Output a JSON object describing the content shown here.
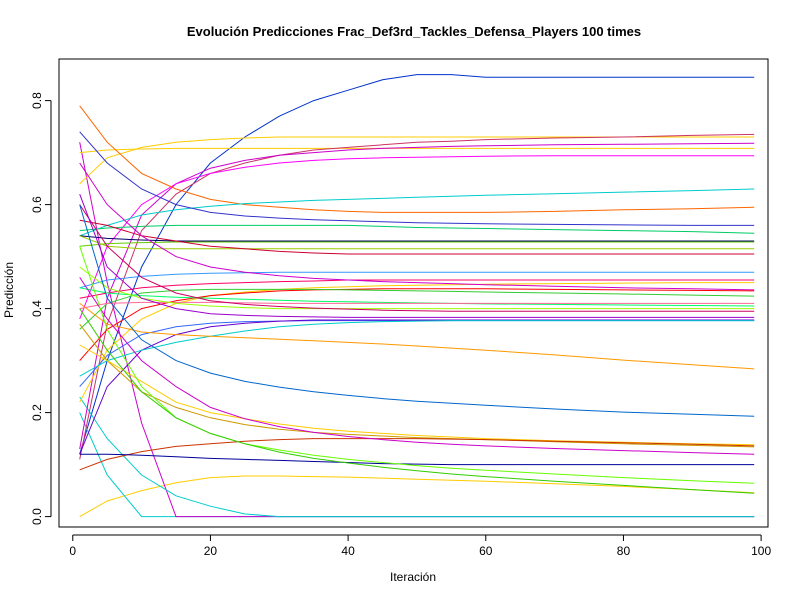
{
  "chart_data": {
    "type": "line",
    "title": "Evolución Predicciones Frac_Def3rd_Tackles_Defensa_Players 100 times",
    "xlabel": "Iteración",
    "ylabel": "Predicción",
    "xlim": [
      -2,
      101
    ],
    "ylim": [
      -0.02,
      0.88
    ],
    "x_ticks": [
      0,
      20,
      40,
      60,
      80,
      100
    ],
    "x_tick_labels": [
      "0",
      "20",
      "40",
      "60",
      "80",
      "100"
    ],
    "y_ticks": [
      0.0,
      0.2,
      0.4,
      0.6,
      0.8
    ],
    "y_tick_labels": [
      "0.0",
      "0.2",
      "0.4",
      "0.6",
      "0.8"
    ],
    "grid": false,
    "legend": "none",
    "x": [
      1,
      5,
      10,
      15,
      20,
      25,
      30,
      35,
      40,
      45,
      50,
      55,
      60,
      70,
      80,
      90,
      99
    ],
    "series": [
      {
        "color": "#0033cc",
        "values": [
          0.12,
          0.3,
          0.48,
          0.6,
          0.68,
          0.73,
          0.77,
          0.8,
          0.82,
          0.84,
          0.85,
          0.85,
          0.845,
          0.845,
          0.845,
          0.845,
          0.845
        ]
      },
      {
        "color": "#ffcc00",
        "values": [
          0.0,
          0.03,
          0.05,
          0.065,
          0.075,
          0.078,
          0.078,
          0.077,
          0.076,
          0.074,
          0.072,
          0.07,
          0.068,
          0.063,
          0.058,
          0.052,
          0.046
        ]
      },
      {
        "color": "#00cccc",
        "values": [
          0.2,
          0.08,
          0.0,
          0.0,
          0.0,
          0.0,
          0.0,
          0.0,
          0.0,
          0.0,
          0.0,
          0.0,
          0.0,
          0.0,
          0.0,
          0.0,
          0.0
        ]
      },
      {
        "color": "#cc00cc",
        "values": [
          0.72,
          0.45,
          0.18,
          0.0,
          0.0,
          0.0,
          0.0,
          0.0,
          0.0,
          0.0,
          0.0,
          0.0,
          0.0,
          0.0,
          0.0,
          0.0,
          0.0
        ]
      },
      {
        "color": "#00cccc",
        "values": [
          0.23,
          0.15,
          0.08,
          0.04,
          0.02,
          0.005,
          0.0,
          0.0,
          0.0,
          0.0,
          0.0,
          0.0,
          0.0,
          0.0,
          0.0,
          0.0,
          0.0
        ]
      },
      {
        "color": "#ffcc00",
        "values": [
          0.64,
          0.69,
          0.71,
          0.72,
          0.725,
          0.728,
          0.73,
          0.73,
          0.73,
          0.73,
          0.73,
          0.73,
          0.73,
          0.73,
          0.73,
          0.73,
          0.73
        ]
      },
      {
        "color": "#ffcc00",
        "values": [
          0.7,
          0.705,
          0.707,
          0.708,
          0.708,
          0.708,
          0.708,
          0.708,
          0.708,
          0.708,
          0.708,
          0.708,
          0.708,
          0.708,
          0.708,
          0.708,
          0.708
        ]
      },
      {
        "color": "#cc3366",
        "values": [
          0.11,
          0.37,
          0.55,
          0.62,
          0.66,
          0.68,
          0.695,
          0.705,
          0.71,
          0.715,
          0.72,
          0.722,
          0.725,
          0.728,
          0.73,
          0.733,
          0.735
        ]
      },
      {
        "color": "#cc00cc",
        "values": [
          0.13,
          0.42,
          0.58,
          0.64,
          0.67,
          0.685,
          0.695,
          0.7,
          0.705,
          0.708,
          0.71,
          0.712,
          0.713,
          0.715,
          0.716,
          0.717,
          0.718
        ]
      },
      {
        "color": "#ff00ff",
        "values": [
          0.38,
          0.52,
          0.6,
          0.64,
          0.66,
          0.672,
          0.68,
          0.685,
          0.688,
          0.69,
          0.691,
          0.692,
          0.693,
          0.694,
          0.694,
          0.694,
          0.694
        ]
      },
      {
        "color": "#ff6600",
        "values": [
          0.79,
          0.72,
          0.66,
          0.63,
          0.61,
          0.6,
          0.595,
          0.59,
          0.587,
          0.585,
          0.585,
          0.585,
          0.585,
          0.587,
          0.59,
          0.592,
          0.595
        ]
      },
      {
        "color": "#00cccc",
        "values": [
          0.54,
          0.56,
          0.58,
          0.59,
          0.597,
          0.602,
          0.605,
          0.608,
          0.61,
          0.612,
          0.614,
          0.616,
          0.618,
          0.621,
          0.624,
          0.627,
          0.63
        ]
      },
      {
        "color": "#3333cc",
        "values": [
          0.74,
          0.68,
          0.63,
          0.6,
          0.585,
          0.578,
          0.574,
          0.571,
          0.569,
          0.567,
          0.565,
          0.564,
          0.563,
          0.562,
          0.561,
          0.56,
          0.56
        ]
      },
      {
        "color": "#00cc66",
        "values": [
          0.55,
          0.555,
          0.558,
          0.56,
          0.56,
          0.56,
          0.56,
          0.56,
          0.56,
          0.558,
          0.556,
          0.555,
          0.554,
          0.552,
          0.55,
          0.548,
          0.545
        ]
      },
      {
        "color": "#000066",
        "values": [
          0.54,
          0.535,
          0.532,
          0.53,
          0.53,
          0.53,
          0.53,
          0.53,
          0.53,
          0.53,
          0.53,
          0.53,
          0.53,
          0.53,
          0.53,
          0.53,
          0.53
        ]
      },
      {
        "color": "#66cc00",
        "values": [
          0.52,
          0.525,
          0.527,
          0.528,
          0.528,
          0.528,
          0.528,
          0.528,
          0.528,
          0.528,
          0.528,
          0.528,
          0.528,
          0.528,
          0.528,
          0.528,
          0.528
        ]
      },
      {
        "color": "#99cc00",
        "values": [
          0.54,
          0.52,
          0.515,
          0.515,
          0.515,
          0.515,
          0.515,
          0.515,
          0.515,
          0.515,
          0.515,
          0.515,
          0.515,
          0.515,
          0.515,
          0.515,
          0.515
        ]
      },
      {
        "color": "#cc0033",
        "values": [
          0.57,
          0.56,
          0.54,
          0.53,
          0.52,
          0.515,
          0.51,
          0.507,
          0.505,
          0.505,
          0.505,
          0.505,
          0.505,
          0.505,
          0.505,
          0.505,
          0.505
        ]
      },
      {
        "color": "#3399ff",
        "values": [
          0.44,
          0.455,
          0.462,
          0.466,
          0.468,
          0.469,
          0.47,
          0.47,
          0.47,
          0.47,
          0.47,
          0.47,
          0.47,
          0.47,
          0.47,
          0.47,
          0.47
        ]
      },
      {
        "color": "#ff0066",
        "values": [
          0.42,
          0.43,
          0.44,
          0.445,
          0.448,
          0.45,
          0.452,
          0.453,
          0.455,
          0.455,
          0.455,
          0.455,
          0.455,
          0.455,
          0.455,
          0.455,
          0.455
        ]
      },
      {
        "color": "#ffcc00",
        "values": [
          0.22,
          0.32,
          0.38,
          0.41,
          0.425,
          0.432,
          0.437,
          0.44,
          0.442,
          0.444,
          0.445,
          0.446,
          0.447,
          0.448,
          0.449,
          0.45,
          0.45
        ]
      },
      {
        "color": "#cc00cc",
        "values": [
          0.68,
          0.6,
          0.54,
          0.5,
          0.48,
          0.47,
          0.463,
          0.458,
          0.455,
          0.452,
          0.45,
          0.448,
          0.446,
          0.443,
          0.44,
          0.438,
          0.436
        ]
      },
      {
        "color": "#ff0000",
        "values": [
          0.3,
          0.36,
          0.4,
          0.415,
          0.425,
          0.43,
          0.434,
          0.436,
          0.437,
          0.438,
          0.438,
          0.438,
          0.438,
          0.437,
          0.436,
          0.435,
          0.434
        ]
      },
      {
        "color": "#33cc33",
        "values": [
          0.36,
          0.41,
          0.43,
          0.435,
          0.437,
          0.437,
          0.437,
          0.437,
          0.436,
          0.435,
          0.434,
          0.433,
          0.432,
          0.43,
          0.428,
          0.426,
          0.424
        ]
      },
      {
        "color": "#00ff66",
        "values": [
          0.44,
          0.43,
          0.425,
          0.422,
          0.42,
          0.418,
          0.416,
          0.414,
          0.413,
          0.412,
          0.411,
          0.41,
          0.409,
          0.408,
          0.407,
          0.406,
          0.405
        ]
      },
      {
        "color": "#ff6699",
        "values": [
          0.4,
          0.41,
          0.412,
          0.412,
          0.412,
          0.411,
          0.41,
          0.41,
          0.41,
          0.41,
          0.41,
          0.41,
          0.41,
          0.41,
          0.41,
          0.41,
          0.41
        ]
      },
      {
        "color": "#99ff00",
        "values": [
          0.48,
          0.44,
          0.42,
          0.41,
          0.405,
          0.402,
          0.4,
          0.4,
          0.4,
          0.4,
          0.4,
          0.4,
          0.4,
          0.4,
          0.4,
          0.4,
          0.4
        ]
      },
      {
        "color": "#cc0066",
        "values": [
          0.6,
          0.52,
          0.46,
          0.43,
          0.415,
          0.408,
          0.404,
          0.401,
          0.399,
          0.397,
          0.396,
          0.395,
          0.395,
          0.395,
          0.395,
          0.395,
          0.395
        ]
      },
      {
        "color": "#9900cc",
        "values": [
          0.62,
          0.48,
          0.42,
          0.4,
          0.39,
          0.387,
          0.385,
          0.384,
          0.383,
          0.383,
          0.383,
          0.383,
          0.383,
          0.383,
          0.383,
          0.383,
          0.383
        ]
      },
      {
        "color": "#3366ff",
        "values": [
          0.25,
          0.31,
          0.35,
          0.365,
          0.372,
          0.375,
          0.376,
          0.377,
          0.377,
          0.377,
          0.377,
          0.377,
          0.377,
          0.377,
          0.377,
          0.377,
          0.377
        ]
      },
      {
        "color": "#6600cc",
        "values": [
          0.12,
          0.25,
          0.32,
          0.35,
          0.365,
          0.372,
          0.376,
          0.378,
          0.378,
          0.378,
          0.378,
          0.378,
          0.378,
          0.378,
          0.378,
          0.378,
          0.378
        ]
      },
      {
        "color": "#00cccc",
        "values": [
          0.27,
          0.3,
          0.32,
          0.335,
          0.347,
          0.357,
          0.365,
          0.37,
          0.373,
          0.375,
          0.376,
          0.377,
          0.377,
          0.377,
          0.377,
          0.377,
          0.377
        ]
      },
      {
        "color": "#ff9900",
        "values": [
          0.41,
          0.37,
          0.355,
          0.35,
          0.347,
          0.344,
          0.341,
          0.338,
          0.335,
          0.332,
          0.328,
          0.324,
          0.32,
          0.311,
          0.301,
          0.292,
          0.284
        ]
      },
      {
        "color": "#0066cc",
        "values": [
          0.6,
          0.42,
          0.34,
          0.3,
          0.276,
          0.26,
          0.249,
          0.24,
          0.233,
          0.227,
          0.222,
          0.218,
          0.214,
          0.207,
          0.201,
          0.197,
          0.193
        ]
      },
      {
        "color": "#cc9900",
        "values": [
          0.37,
          0.3,
          0.24,
          0.21,
          0.19,
          0.177,
          0.168,
          0.162,
          0.158,
          0.155,
          0.152,
          0.15,
          0.148,
          0.144,
          0.14,
          0.137,
          0.134
        ]
      },
      {
        "color": "#ffcc00",
        "values": [
          0.33,
          0.3,
          0.26,
          0.22,
          0.2,
          0.188,
          0.178,
          0.17,
          0.164,
          0.16,
          0.156,
          0.153,
          0.15,
          0.146,
          0.143,
          0.14,
          0.138
        ]
      },
      {
        "color": "#cc3300",
        "values": [
          0.09,
          0.11,
          0.125,
          0.135,
          0.14,
          0.145,
          0.148,
          0.15,
          0.15,
          0.15,
          0.15,
          0.149,
          0.148,
          0.145,
          0.142,
          0.139,
          0.136
        ]
      },
      {
        "color": "#cc00cc",
        "values": [
          0.46,
          0.38,
          0.3,
          0.25,
          0.21,
          0.188,
          0.173,
          0.162,
          0.154,
          0.148,
          0.143,
          0.139,
          0.136,
          0.131,
          0.127,
          0.123,
          0.12
        ]
      },
      {
        "color": "#000099",
        "values": [
          0.12,
          0.12,
          0.118,
          0.115,
          0.112,
          0.11,
          0.108,
          0.106,
          0.104,
          0.102,
          0.101,
          0.1,
          0.1,
          0.1,
          0.1,
          0.1,
          0.1
        ]
      },
      {
        "color": "#66ff00",
        "values": [
          0.52,
          0.36,
          0.25,
          0.19,
          0.16,
          0.14,
          0.128,
          0.118,
          0.11,
          0.104,
          0.098,
          0.093,
          0.089,
          0.082,
          0.075,
          0.069,
          0.064
        ]
      },
      {
        "color": "#33cc00",
        "values": [
          0.4,
          0.32,
          0.24,
          0.19,
          0.16,
          0.14,
          0.124,
          0.112,
          0.103,
          0.095,
          0.088,
          0.082,
          0.077,
          0.068,
          0.06,
          0.052,
          0.045
        ]
      }
    ]
  }
}
